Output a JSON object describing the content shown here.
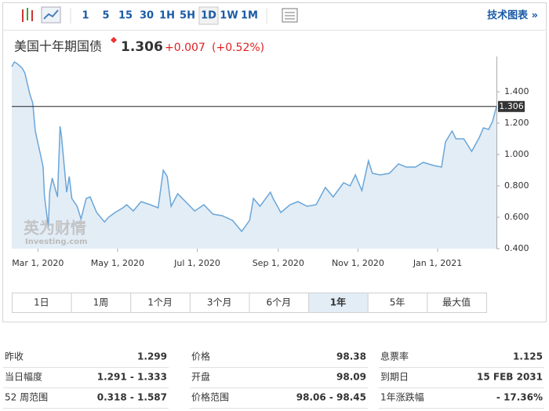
{
  "toolbar": {
    "intervals": [
      "1",
      "5",
      "15",
      "30",
      "1H",
      "5H",
      "1D",
      "1W",
      "1M"
    ],
    "selected": "1D",
    "link": "技术图表 »"
  },
  "header": {
    "name": "美国十年期国债",
    "price": "1.306",
    "change": "+0.007",
    "change_pct": "(+0.52%)"
  },
  "chart_data": {
    "type": "line",
    "color": "#6aa6d8",
    "fill": "#e3edf6",
    "watermark": [
      "英为财情",
      "Investing.com"
    ],
    "x": [
      "2020-02-10",
      "2020-02-12",
      "2020-02-14",
      "2020-02-18",
      "2020-02-20",
      "2020-02-24",
      "2020-02-26",
      "2020-02-28",
      "2020-03-03",
      "2020-03-05",
      "2020-03-06",
      "2020-03-09",
      "2020-03-10",
      "2020-03-12",
      "2020-03-16",
      "2020-03-18",
      "2020-03-19",
      "2020-03-23",
      "2020-03-25",
      "2020-03-27",
      "2020-03-31",
      "2020-04-03",
      "2020-04-07",
      "2020-04-10",
      "2020-04-15",
      "2020-04-21",
      "2020-04-24",
      "2020-04-29",
      "2020-05-05",
      "2020-05-08",
      "2020-05-13",
      "2020-05-19",
      "2020-05-26",
      "2020-06-01",
      "2020-06-05",
      "2020-06-08",
      "2020-06-11",
      "2020-06-16",
      "2020-06-22",
      "2020-06-29",
      "2020-07-06",
      "2020-07-13",
      "2020-07-20",
      "2020-07-28",
      "2020-08-04",
      "2020-08-10",
      "2020-08-13",
      "2020-08-18",
      "2020-08-26",
      "2020-08-28",
      "2020-09-03",
      "2020-09-10",
      "2020-09-16",
      "2020-09-23",
      "2020-09-30",
      "2020-10-07",
      "2020-10-13",
      "2020-10-21",
      "2020-10-26",
      "2020-10-30",
      "2020-11-04",
      "2020-11-09",
      "2020-11-12",
      "2020-11-18",
      "2020-11-25",
      "2020-12-02",
      "2020-12-08",
      "2020-12-15",
      "2020-12-21",
      "2020-12-29",
      "2021-01-04",
      "2021-01-07",
      "2021-01-12",
      "2021-01-15",
      "2021-01-21",
      "2021-01-27",
      "2021-02-02",
      "2021-02-05",
      "2021-02-09",
      "2021-02-12",
      "2021-02-15"
    ],
    "values": [
      1.56,
      1.59,
      1.58,
      1.55,
      1.52,
      1.38,
      1.33,
      1.15,
      1.0,
      0.92,
      0.74,
      0.54,
      0.76,
      0.85,
      0.73,
      1.18,
      1.12,
      0.76,
      0.86,
      0.72,
      0.67,
      0.59,
      0.72,
      0.73,
      0.63,
      0.57,
      0.6,
      0.63,
      0.66,
      0.68,
      0.64,
      0.7,
      0.68,
      0.66,
      0.9,
      0.86,
      0.67,
      0.75,
      0.7,
      0.64,
      0.68,
      0.62,
      0.61,
      0.58,
      0.51,
      0.58,
      0.72,
      0.67,
      0.76,
      0.72,
      0.63,
      0.68,
      0.7,
      0.67,
      0.68,
      0.79,
      0.73,
      0.82,
      0.8,
      0.87,
      0.77,
      0.96,
      0.88,
      0.87,
      0.88,
      0.94,
      0.92,
      0.92,
      0.95,
      0.93,
      0.92,
      1.08,
      1.15,
      1.1,
      1.1,
      1.02,
      1.11,
      1.17,
      1.16,
      1.21,
      1.306
    ],
    "reference_line": 1.306,
    "xlim": [
      "2020-02-10",
      "2021-02-15"
    ],
    "xticks": [
      {
        "value": "2020-03-01",
        "label": "Mar 1, 2020"
      },
      {
        "value": "2020-05-01",
        "label": "May 1, 2020"
      },
      {
        "value": "2020-07-01",
        "label": "Jul 1, 2020"
      },
      {
        "value": "2020-09-01",
        "label": "Sep 1, 2020"
      },
      {
        "value": "2020-11-01",
        "label": "Nov 1, 2020"
      },
      {
        "value": "2021-01-01",
        "label": "Jan 1, 2021"
      }
    ],
    "ylim": [
      0.4,
      1.6
    ],
    "yticks": [
      {
        "value": 0.4,
        "label": "0.400"
      },
      {
        "value": 0.6,
        "label": "0.600"
      },
      {
        "value": 0.8,
        "label": "0.800"
      },
      {
        "value": 1.0,
        "label": "1.000"
      },
      {
        "value": 1.2,
        "label": "1.200"
      },
      {
        "value": 1.4,
        "label": "1.400"
      }
    ]
  },
  "ranges": {
    "buttons": [
      "1日",
      "1周",
      "1个月",
      "3个月",
      "6个月",
      "1年",
      "5年",
      "最大值"
    ],
    "selected": "1年"
  },
  "stats": {
    "rows": [
      [
        "昨收",
        "1.299",
        "价格",
        "98.38",
        "息票率",
        "1.125"
      ],
      [
        "当日幅度",
        "1.291 - 1.333",
        "开盘",
        "98.09",
        "到期日",
        "15 FEB 2031"
      ],
      [
        "52 周范围",
        "0.318 - 1.587",
        "价格范围",
        "98.06 - 98.45",
        "1年涨跌幅",
        "- 17.36%"
      ]
    ]
  }
}
